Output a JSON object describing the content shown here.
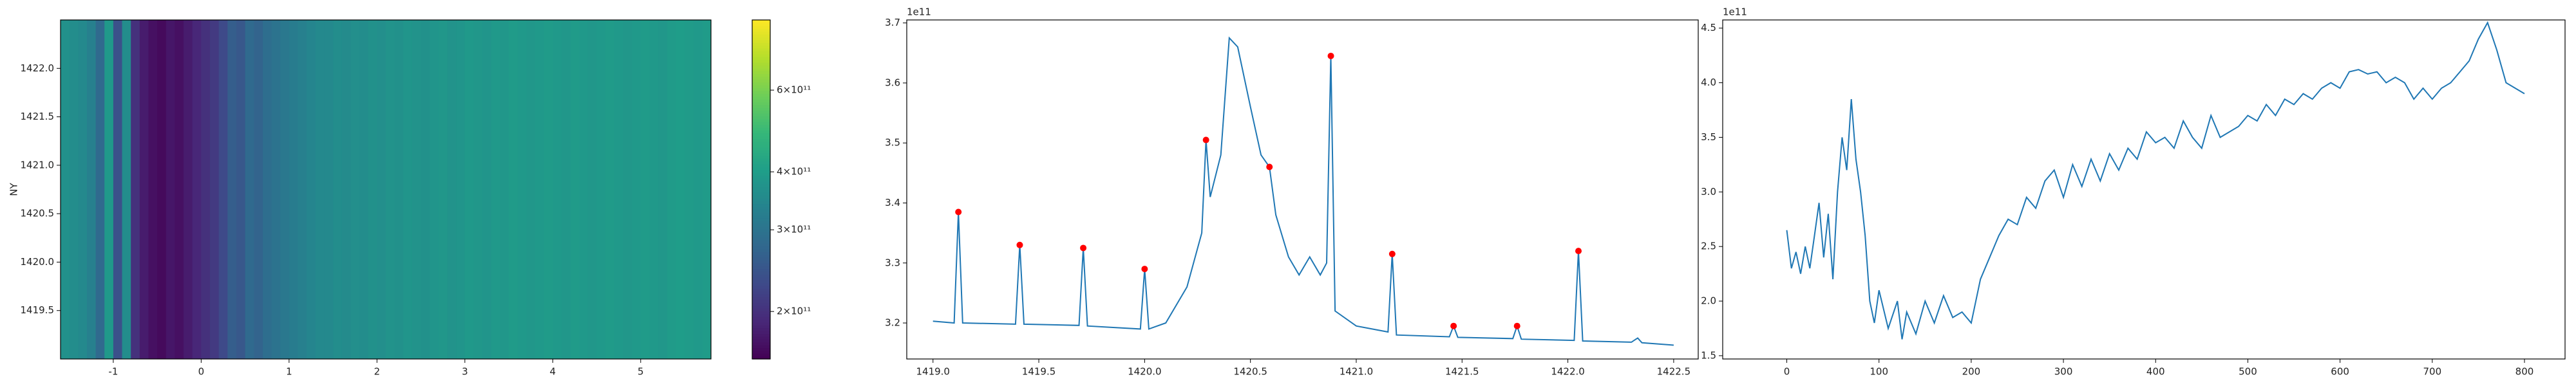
{
  "chart_data": [
    {
      "type": "heatmap",
      "ylabel": "NY",
      "colormap": "viridis",
      "color_log": true,
      "xlim": [
        -1.6,
        5.8
      ],
      "ylim": [
        1419.0,
        1422.5
      ],
      "xticks": [
        -1,
        0,
        1,
        2,
        3,
        4,
        5
      ],
      "yticks": [
        {
          "value": 1419.5,
          "label": "1419.5"
        },
        {
          "value": 1420,
          "label": "1420.0"
        },
        {
          "value": 1420.5,
          "label": "1420.5"
        },
        {
          "value": 1421,
          "label": "1421.0"
        },
        {
          "value": 1421.5,
          "label": "1421.5"
        },
        {
          "value": 1422,
          "label": "1422.0"
        }
      ],
      "clim": [
        158000000000,
        850000000000
      ],
      "cticks": [
        {
          "value": 200000000000,
          "label": "2×10¹¹"
        },
        {
          "value": 300000000000,
          "label": "3×10¹¹"
        },
        {
          "value": 400000000000,
          "label": "4×10¹¹"
        },
        {
          "value": 600000000000,
          "label": "6×10¹¹"
        }
      ],
      "x": [
        -1.55,
        -1.45,
        -1.35,
        -1.25,
        -1.15,
        -1.05,
        -0.95,
        -0.85,
        -0.75,
        -0.65,
        -0.55,
        -0.45,
        -0.35,
        -0.25,
        -0.15,
        -0.05,
        0.05,
        0.15,
        0.25,
        0.35,
        0.45,
        0.55,
        0.65,
        0.75,
        0.85,
        0.95,
        1.05,
        1.15,
        1.25,
        1.35,
        1.45,
        1.55,
        1.65,
        1.75,
        1.85,
        1.95,
        2.05,
        2.15,
        2.25,
        2.35,
        2.45,
        2.55,
        2.65,
        2.75,
        2.85,
        2.95,
        3.05,
        3.15,
        3.25,
        3.35,
        3.45,
        3.55,
        3.65,
        3.75,
        3.85,
        3.95,
        4.05,
        4.15,
        4.25,
        4.35,
        4.45,
        4.55,
        4.65,
        4.75,
        4.85,
        4.95,
        5.05,
        5.15,
        5.25,
        5.35,
        5.45,
        5.55,
        5.65,
        5.75
      ],
      "values": [
        370000000000,
        360000000000,
        350000000000,
        330000000000,
        280000000000,
        390000000000,
        240000000000,
        360000000000,
        200000000000,
        180000000000,
        170000000000,
        165000000000,
        175000000000,
        170000000000,
        180000000000,
        190000000000,
        200000000000,
        210000000000,
        230000000000,
        260000000000,
        250000000000,
        280000000000,
        270000000000,
        290000000000,
        300000000000,
        310000000000,
        320000000000,
        330000000000,
        340000000000,
        350000000000,
        350000000000,
        360000000000,
        355000000000,
        365000000000,
        360000000000,
        370000000000,
        365000000000,
        375000000000,
        370000000000,
        380000000000,
        375000000000,
        370000000000,
        380000000000,
        385000000000,
        375000000000,
        380000000000,
        390000000000,
        385000000000,
        380000000000,
        390000000000,
        385000000000,
        395000000000,
        390000000000,
        385000000000,
        390000000000,
        395000000000,
        390000000000,
        385000000000,
        395000000000,
        390000000000,
        385000000000,
        390000000000,
        395000000000,
        390000000000,
        385000000000,
        390000000000,
        395000000000,
        390000000000,
        385000000000,
        395000000000,
        400000000000,
        395000000000,
        390000000000,
        395000000000
      ]
    },
    {
      "type": "line",
      "y_offset_label": "1e11",
      "xlim": [
        1418.876,
        1422.616
      ],
      "ylim": [
        3.14,
        3.705
      ],
      "xticks": [
        {
          "value": 1419,
          "label": "1419.0"
        },
        {
          "value": 1419.5,
          "label": "1419.5"
        },
        {
          "value": 1420,
          "label": "1420.0"
        },
        {
          "value": 1420.5,
          "label": "1420.5"
        },
        {
          "value": 1421,
          "label": "1421.0"
        },
        {
          "value": 1421.5,
          "label": "1421.5"
        },
        {
          "value": 1422,
          "label": "1422.0"
        },
        {
          "value": 1422.5,
          "label": "1422.5"
        }
      ],
      "yticks": [
        3.2,
        3.3,
        3.4,
        3.5,
        3.6,
        3.7
      ],
      "series": [
        {
          "color": "#1f77b4",
          "style": "line",
          "x": [
            1419.0,
            1419.1,
            1419.12,
            1419.14,
            1419.39,
            1419.41,
            1419.43,
            1419.69,
            1419.71,
            1419.73,
            1419.98,
            1420.0,
            1420.02,
            1420.1,
            1420.2,
            1420.27,
            1420.29,
            1420.31,
            1420.36,
            1420.4,
            1420.44,
            1420.5,
            1420.55,
            1420.59,
            1420.62,
            1420.68,
            1420.73,
            1420.78,
            1420.83,
            1420.86,
            1420.88,
            1420.9,
            1421.0,
            1421.15,
            1421.17,
            1421.19,
            1421.44,
            1421.46,
            1421.48,
            1421.74,
            1421.76,
            1421.78,
            1422.03,
            1422.05,
            1422.07,
            1422.3,
            1422.33,
            1422.35,
            1422.5
          ],
          "values": [
            3.203,
            3.2,
            3.385,
            3.2,
            3.198,
            3.33,
            3.198,
            3.196,
            3.325,
            3.195,
            3.19,
            3.29,
            3.19,
            3.2,
            3.26,
            3.35,
            3.505,
            3.41,
            3.48,
            3.675,
            3.66,
            3.56,
            3.48,
            3.46,
            3.38,
            3.31,
            3.28,
            3.31,
            3.28,
            3.3,
            3.645,
            3.22,
            3.195,
            3.185,
            3.315,
            3.18,
            3.177,
            3.195,
            3.176,
            3.174,
            3.195,
            3.173,
            3.171,
            3.32,
            3.17,
            3.168,
            3.175,
            3.167,
            3.163
          ]
        },
        {
          "color": "red",
          "style": "points",
          "x": [
            1419.12,
            1419.41,
            1419.71,
            1420.0,
            1420.29,
            1420.59,
            1420.88,
            1421.17,
            1421.46,
            1421.76,
            1422.05
          ],
          "values": [
            3.385,
            3.33,
            3.325,
            3.29,
            3.505,
            3.46,
            3.645,
            3.315,
            3.195,
            3.195,
            3.32
          ]
        }
      ]
    },
    {
      "type": "line",
      "y_offset_label": "1e11",
      "xlim": [
        -69.5,
        844
      ],
      "ylim": [
        1.47,
        4.575
      ],
      "xticks": [
        0,
        100,
        200,
        300,
        400,
        500,
        600,
        700,
        800
      ],
      "yticks": [
        1.5,
        {
          "value": 2,
          "label": "2.0"
        },
        2.5,
        {
          "value": 3,
          "label": "3.0"
        },
        3.5,
        {
          "value": 4,
          "label": "4.0"
        },
        4.5
      ],
      "series": [
        {
          "color": "#1f77b4",
          "style": "line",
          "x": [
            0,
            5,
            10,
            15,
            20,
            25,
            30,
            35,
            40,
            45,
            50,
            55,
            60,
            65,
            70,
            75,
            80,
            85,
            90,
            95,
            100,
            110,
            120,
            125,
            130,
            140,
            150,
            160,
            170,
            180,
            190,
            200,
            210,
            220,
            230,
            240,
            250,
            260,
            270,
            280,
            290,
            300,
            310,
            320,
            330,
            340,
            350,
            360,
            370,
            380,
            390,
            400,
            410,
            420,
            430,
            440,
            450,
            460,
            470,
            480,
            490,
            500,
            510,
            520,
            530,
            540,
            550,
            560,
            570,
            580,
            590,
            600,
            610,
            620,
            630,
            640,
            650,
            660,
            670,
            680,
            690,
            700,
            710,
            720,
            730,
            740,
            750,
            760,
            770,
            780,
            790,
            800
          ],
          "values": [
            2.65,
            2.3,
            2.45,
            2.25,
            2.5,
            2.3,
            2.6,
            2.9,
            2.4,
            2.8,
            2.2,
            3.0,
            3.5,
            3.2,
            3.85,
            3.3,
            3.0,
            2.6,
            2.0,
            1.8,
            2.1,
            1.75,
            2.0,
            1.65,
            1.9,
            1.7,
            2.0,
            1.8,
            2.05,
            1.85,
            1.9,
            1.8,
            2.2,
            2.4,
            2.6,
            2.75,
            2.7,
            2.95,
            2.85,
            3.1,
            3.2,
            2.95,
            3.25,
            3.05,
            3.3,
            3.1,
            3.35,
            3.2,
            3.4,
            3.3,
            3.55,
            3.45,
            3.5,
            3.4,
            3.65,
            3.5,
            3.4,
            3.7,
            3.5,
            3.55,
            3.6,
            3.7,
            3.65,
            3.8,
            3.7,
            3.85,
            3.8,
            3.9,
            3.85,
            3.95,
            4.0,
            3.95,
            4.1,
            4.12,
            4.08,
            4.1,
            4.0,
            4.05,
            4.0,
            3.85,
            3.95,
            3.85,
            3.95,
            4.0,
            4.1,
            4.2,
            4.4,
            4.55,
            4.3,
            4.0,
            3.95,
            3.9
          ]
        }
      ]
    }
  ]
}
